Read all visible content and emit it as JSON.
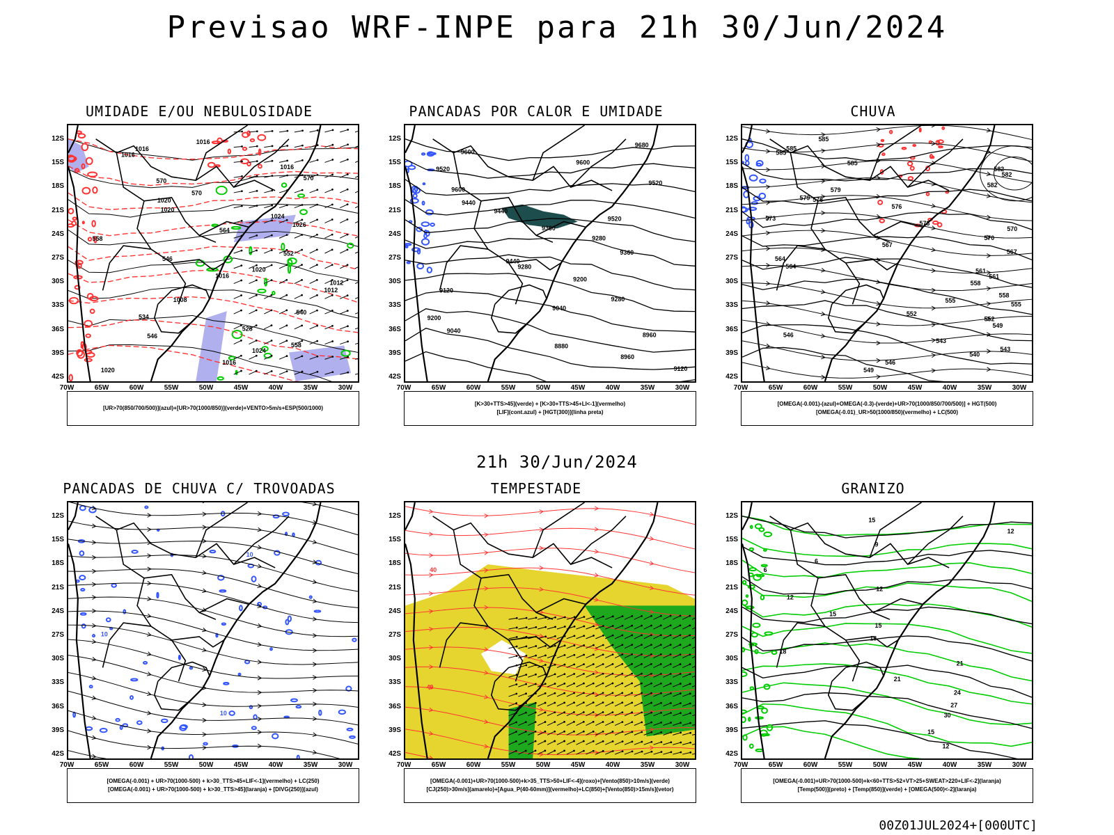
{
  "title": "Previsao WRF-INPE  para 21h 30/Jun/2024",
  "mid_label": "21h 30/Jun/2024",
  "footer": "00Z01JUL2024+[000UTC]",
  "lat_ticks": [
    "12S",
    "15S",
    "18S",
    "21S",
    "24S",
    "27S",
    "30S",
    "33S",
    "36S",
    "39S",
    "42S"
  ],
  "lon_ticks": [
    "70W",
    "65W",
    "60W",
    "55W",
    "50W",
    "45W",
    "40W",
    "35W",
    "30W"
  ],
  "colors": {
    "red": "#ff3333",
    "green": "#00cc00",
    "blue": "#3355ff",
    "yellow": "#e6d52e",
    "teal": "#1e4d4d",
    "lavender": "#b0b0ee"
  },
  "panels": [
    {
      "title": "UMIDADE E/OU NEBULOSIDADE",
      "legend": [
        "[UR>70(850/700/500)](azul)+[UR>70(1000/850)](verde)+VENTO>5m/s+ESP(500/1000)"
      ],
      "labels": [
        "1016",
        "1016",
        "1016",
        "1016",
        "570",
        "570",
        "570",
        "1020",
        "1020",
        "1024",
        "1026",
        "564",
        "558",
        "552",
        "546",
        "1020",
        "1016",
        "1012",
        "1012",
        "1008",
        "540",
        "534",
        "528",
        "546",
        "558",
        "1024",
        "1016",
        "1020"
      ]
    },
    {
      "title": "PANCADAS POR CALOR E UMIDADE",
      "legend": [
        "[K>30+TTS>45](verde) + [K>30+TTS>45+LI<-1](vermelho)",
        "[LIF](cont.azul) + [HGT(300)](linha preta)"
      ],
      "labels": [
        "9680",
        "9600",
        "9600",
        "9520",
        "9520",
        "9600",
        "9440",
        "9440",
        "9520",
        "9360",
        "9280",
        "9360",
        "9440",
        "9280",
        "9200",
        "9120",
        "9280",
        "9040",
        "9200",
        "9040",
        "8960",
        "8880",
        "8960",
        "9120"
      ]
    },
    {
      "title": "CHUVA",
      "legend": [
        "[OMEGA(-0.001)-(azul)+OMEGA(-0.3)-(verde)+UR>70(1000/850/700/500)] + HGT(500)",
        "[OMEGA(-0.01)_UR>50(1000/850)(vermelho) + LC(500)"
      ],
      "labels": [
        "585",
        "585",
        "585",
        "585",
        "582",
        "582",
        "582",
        "579",
        "579",
        "576",
        "576",
        "573",
        "573",
        "570",
        "570",
        "567",
        "567",
        "564",
        "564",
        "561",
        "561",
        "558",
        "558",
        "555",
        "555",
        "552",
        "552",
        "549",
        "546",
        "543",
        "543",
        "540",
        "546",
        "549"
      ]
    },
    {
      "title": "PANCADAS DE CHUVA C/ TROVOADAS",
      "legend": [
        "[OMEGA(-0.001) + UR>70(1000-500) + k>30_TTS>45+LIF<-1](vermelho) + LC(250)",
        "[OMEGA(-0.001) + UR>70(1000-500) + k>30_TTS>45](laranja) + [DIVG(250)](azul)"
      ],
      "labels": [
        "10",
        "10",
        "10"
      ]
    },
    {
      "title": "TEMPESTADE",
      "legend": [
        "[OMEGA(-0.001)+UR>70(1000-500)+k>35_TTS>50+LIF<-4](roxo)+[Vento(850)>10m/s](verde)",
        "[CJ(250)>30m/s](amarelo)+[Agua_P(40-60mm)](vermelho)+LC(850)+[Vento(850)>15m/s](vetor)"
      ],
      "labels": [
        "40",
        "40"
      ]
    },
    {
      "title": "GRANIZO",
      "legend": [
        "[OMEGA(-0.001)+UR>70(1000-500)+k<60+TTS>52+VT>25+SWEAT>220+LIF<-2](laranja)",
        "[Temp(500)](preto) + [Temp(850)](verde) + [OMEGA(500)<-2](laranja)"
      ],
      "labels": [
        "15",
        "12",
        "9",
        "6",
        "6",
        "12",
        "12",
        "15",
        "15",
        "18",
        "18",
        "21",
        "21",
        "24",
        "27",
        "30",
        "15",
        "12"
      ]
    }
  ]
}
